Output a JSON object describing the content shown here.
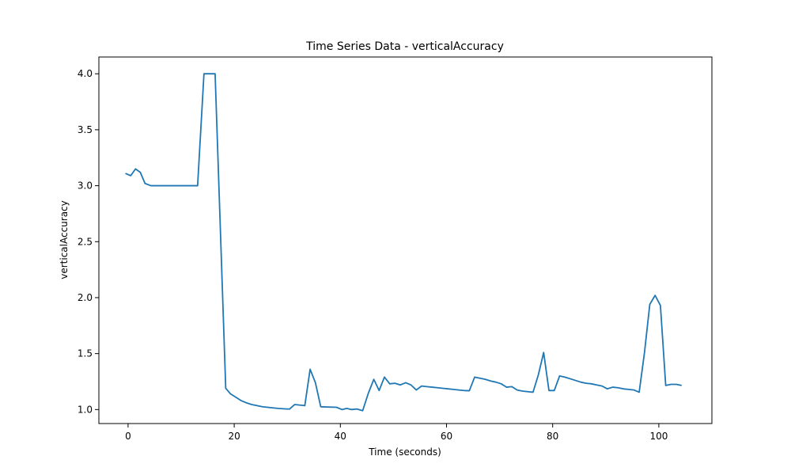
{
  "chart_data": {
    "type": "line",
    "title": "Time Series Data - verticalAccuracy",
    "xlabel": "Time (seconds)",
    "ylabel": "verticalAccuracy",
    "xlim": [
      -5.5,
      110
    ],
    "ylim": [
      0.875,
      4.15
    ],
    "xticks": [
      0,
      20,
      40,
      60,
      80,
      100
    ],
    "xtick_labels": [
      "0",
      "20",
      "40",
      "60",
      "80",
      "100"
    ],
    "yticks": [
      1.0,
      1.5,
      2.0,
      2.5,
      3.0,
      3.5,
      4.0
    ],
    "ytick_labels": [
      "1.0",
      "1.5",
      "2.0",
      "2.5",
      "3.0",
      "3.5",
      "4.0"
    ],
    "grid": false,
    "color": "#1f77b4",
    "series": [
      {
        "x": [
          -0.5,
          0.5,
          1.4,
          2.3,
          3.2,
          4.3,
          5.3,
          13.1,
          14.3,
          15.3,
          16.4,
          18.4,
          19.3,
          20.3,
          21.3,
          22.3,
          23.3,
          24.3,
          25.3,
          26.3,
          27.3,
          28.3,
          29.3,
          30.4,
          31.4,
          33.3,
          34.3,
          35.3,
          36.3,
          39.3,
          40.3,
          41.2,
          42.1,
          43.1,
          44.2,
          45.3,
          46.3,
          47.3,
          48.3,
          49.3,
          50.3,
          51.3,
          52.3,
          53.3,
          54.3,
          55.3,
          56.3,
          57.3,
          58.3,
          59.3,
          60.3,
          61.3,
          62.3,
          63.3,
          64.3,
          65.3,
          66.3,
          67.3,
          68.3,
          69.3,
          70.3,
          71.3,
          72.3,
          73.3,
          74.3,
          75.3,
          76.3,
          77.3,
          78.3,
          79.3,
          80.3,
          81.3,
          82.3,
          83.3,
          84.3,
          85.3,
          86.3,
          87.3,
          88.3,
          89.3,
          90.3,
          91.3,
          92.3,
          93.3,
          94.3,
          95.3,
          96.3,
          97.3,
          98.3,
          99.3,
          100.3,
          101.3,
          102.3,
          103.3,
          104.3
        ],
        "y": [
          3.11,
          3.09,
          3.15,
          3.12,
          3.02,
          3.0,
          3.0,
          3.0,
          4.0,
          4.0,
          4.0,
          1.19,
          1.14,
          1.11,
          1.08,
          1.06,
          1.045,
          1.035,
          1.025,
          1.02,
          1.015,
          1.01,
          1.007,
          1.004,
          1.045,
          1.035,
          1.36,
          1.24,
          1.025,
          1.02,
          1.0,
          1.01,
          1.0,
          1.005,
          0.99,
          1.15,
          1.27,
          1.17,
          1.29,
          1.23,
          1.235,
          1.22,
          1.24,
          1.22,
          1.175,
          1.21,
          1.205,
          1.2,
          1.195,
          1.19,
          1.185,
          1.18,
          1.175,
          1.17,
          1.168,
          1.29,
          1.28,
          1.27,
          1.255,
          1.245,
          1.23,
          1.2,
          1.205,
          1.175,
          1.165,
          1.16,
          1.155,
          1.31,
          1.51,
          1.17,
          1.17,
          1.3,
          1.29,
          1.275,
          1.26,
          1.245,
          1.235,
          1.23,
          1.22,
          1.21,
          1.185,
          1.2,
          1.195,
          1.185,
          1.18,
          1.175,
          1.155,
          1.51,
          1.94,
          2.02,
          1.93,
          1.215,
          1.225,
          1.225,
          1.215
        ]
      }
    ]
  }
}
